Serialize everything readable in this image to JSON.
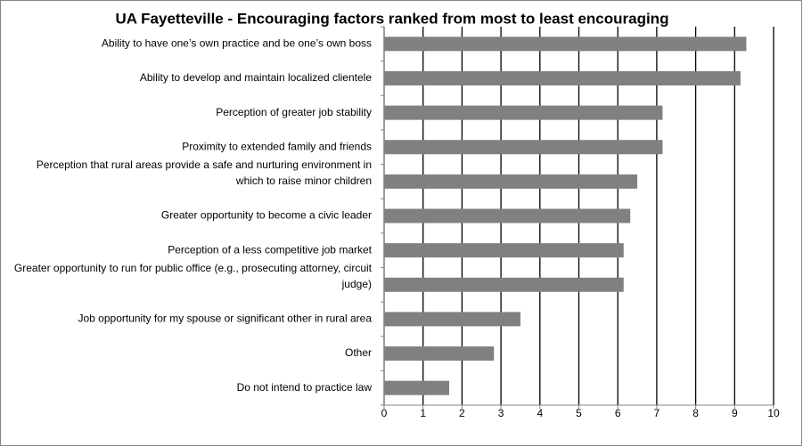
{
  "chart_data": {
    "type": "bar",
    "orientation": "horizontal",
    "title": "UA Fayetteville - Encouraging factors ranked from most to least encouraging",
    "categories": [
      "Ability to have one’s own practice and be one’s own boss",
      "Ability to develop and maintain localized clientele",
      "Perception of greater job stability",
      "Proximity to extended family and friends",
      "Perception that rural areas provide a safe and nurturing environment in which to raise minor children",
      "Greater opportunity to become a civic leader",
      "Perception of a less competitive job market",
      "Greater opportunity to run for public office (e.g., prosecuting attorney, circuit judge)",
      "Job opportunity for my spouse or significant other in rural area",
      "Other",
      "Do not intend to practice law"
    ],
    "values": [
      9.3,
      9.15,
      7.15,
      7.15,
      6.5,
      6.32,
      6.15,
      6.15,
      3.5,
      2.82,
      1.67
    ],
    "color": "#808080",
    "xlim": [
      0,
      10
    ],
    "xticks": [
      0,
      1,
      2,
      3,
      4,
      5,
      6,
      7,
      8,
      9,
      10
    ],
    "grid": true
  }
}
